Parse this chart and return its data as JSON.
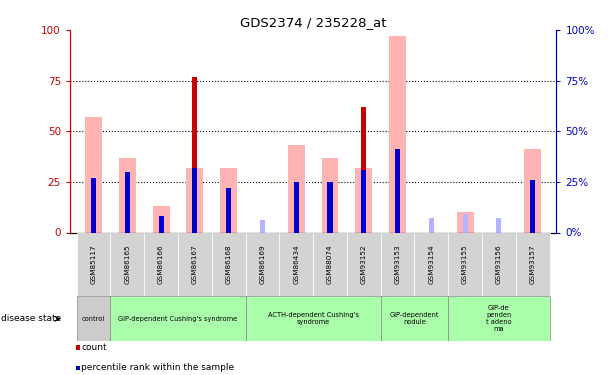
{
  "title": "GDS2374 / 235228_at",
  "samples": [
    "GSM85117",
    "GSM86165",
    "GSM86166",
    "GSM86167",
    "GSM86168",
    "GSM86169",
    "GSM86434",
    "GSM88074",
    "GSM93152",
    "GSM93153",
    "GSM93154",
    "GSM93155",
    "GSM93156",
    "GSM93157"
  ],
  "count_values": [
    0,
    0,
    0,
    77,
    0,
    0,
    0,
    0,
    62,
    0,
    0,
    0,
    0,
    0
  ],
  "percentile_values": [
    27,
    30,
    8,
    32,
    22,
    0,
    25,
    25,
    31,
    41,
    0,
    0,
    0,
    26
  ],
  "value_absent": [
    57,
    37,
    13,
    32,
    32,
    0,
    43,
    37,
    32,
    97,
    0,
    10,
    0,
    41
  ],
  "rank_absent": [
    27,
    30,
    8,
    22,
    5,
    6,
    25,
    25,
    0,
    41,
    7,
    9,
    7,
    26
  ],
  "groups": [
    {
      "label": "control",
      "start": 0,
      "end": 1,
      "color": "#cccccc"
    },
    {
      "label": "GIP-dependent Cushing's syndrome",
      "start": 1,
      "end": 5,
      "color": "#aaffaa"
    },
    {
      "label": "ACTH-dependent Cushing's\nsyndrome",
      "start": 5,
      "end": 9,
      "color": "#aaffaa"
    },
    {
      "label": "GIP-dependent\nnodule",
      "start": 9,
      "end": 11,
      "color": "#aaffaa"
    },
    {
      "label": "GIP-de\npenden\nt adeno\nma",
      "start": 11,
      "end": 14,
      "color": "#aaffaa"
    }
  ],
  "ylim": [
    0,
    100
  ],
  "yticks": [
    0,
    25,
    50,
    75,
    100
  ],
  "count_color": "#cc0000",
  "percentile_color": "#0000cc",
  "value_absent_color": "#ffb3b3",
  "rank_absent_color": "#b3b3ff",
  "bg_color": "#ffffff",
  "left_axis_color": "#cc0000",
  "right_axis_color": "#0000cc"
}
